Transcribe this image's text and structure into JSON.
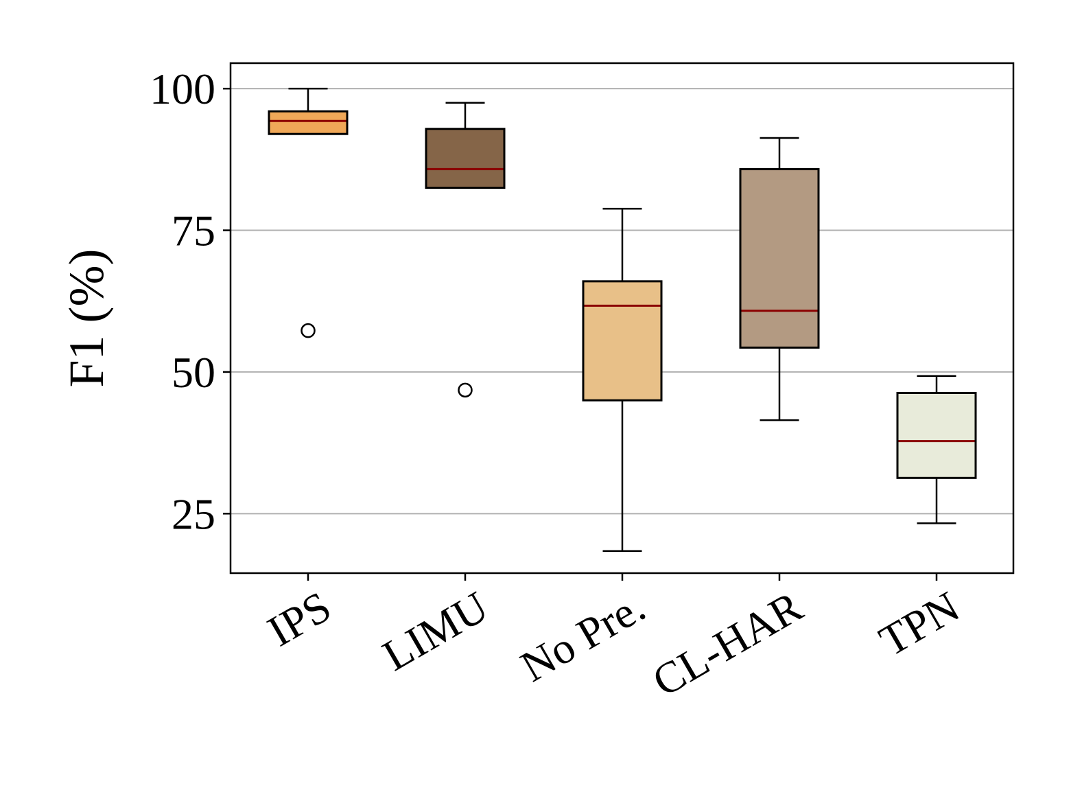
{
  "chart_data": {
    "type": "box",
    "title": "",
    "xlabel": "",
    "ylabel": "F1 (%)",
    "ylim": [
      14.5,
      104.5
    ],
    "yticks": [
      25,
      50,
      75,
      100
    ],
    "grid": "y",
    "categories": [
      "IPS",
      "LIMU",
      "No Pre.",
      "CL-HAR",
      "TPN"
    ],
    "boxes": [
      {
        "name": "IPS",
        "whisker_low": 92,
        "q1": 92,
        "median": 94.3,
        "q3": 96,
        "whisker_high": 100,
        "outliers": [
          57.3
        ],
        "color": "#F0A858"
      },
      {
        "name": "LIMU",
        "whisker_low": 82.5,
        "q1": 82.5,
        "median": 85.8,
        "q3": 92.9,
        "whisker_high": 97.5,
        "outliers": [
          46.8
        ],
        "color": "#856548"
      },
      {
        "name": "No Pre.",
        "whisker_low": 18.4,
        "q1": 45,
        "median": 61.7,
        "q3": 66,
        "whisker_high": 78.8,
        "outliers": [],
        "color": "#E8C088"
      },
      {
        "name": "CL-HAR",
        "whisker_low": 41.5,
        "q1": 54.3,
        "median": 60.8,
        "q3": 85.8,
        "whisker_high": 91.3,
        "outliers": [],
        "color": "#B39A82"
      },
      {
        "name": "TPN",
        "whisker_low": 23.3,
        "q1": 31.3,
        "median": 37.8,
        "q3": 46.3,
        "whisker_high": 49.3,
        "outliers": [],
        "color": "#E8EBDA"
      }
    ],
    "median_color": "#8B0000",
    "grid_color": "#B0B0B0"
  }
}
